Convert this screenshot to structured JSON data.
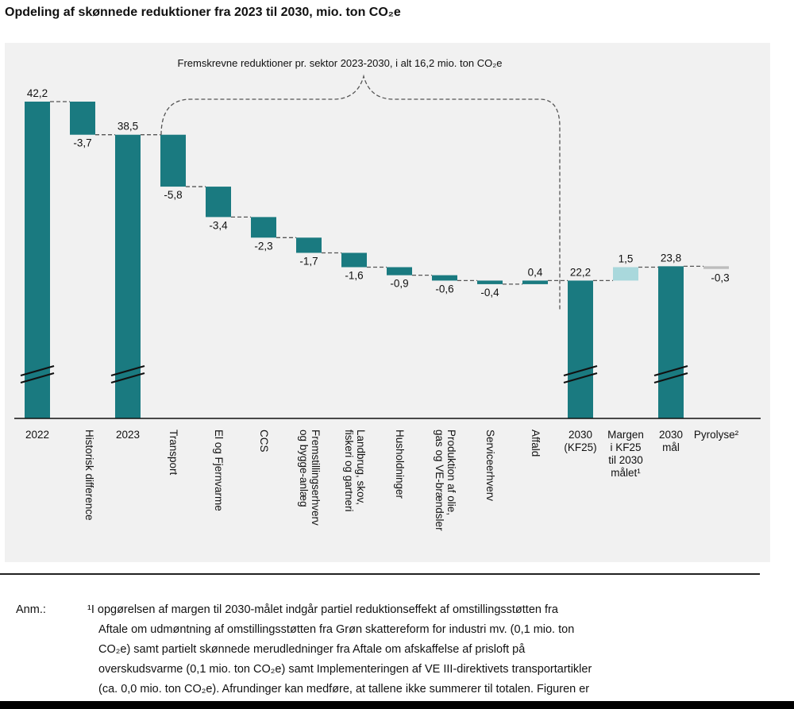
{
  "title": "Opdeling af skønnede reduktioner fra 2023 til 2030, mio. ton CO₂e",
  "colors": {
    "bar": "#1a7a80",
    "margin_bar": "#a9d8dc",
    "pyrolysis_bar": "#bdbdbd",
    "panel": "#f1f1f1"
  },
  "chart_data": {
    "type": "waterfall",
    "title": "Opdeling af skønnede reduktioner fra 2023 til 2030, mio. ton CO₂e",
    "unit": "mio. ton CO₂e",
    "bracket_label": "Fremskrevne reduktioner pr. sektor 2023-2030, i alt 16,2 mio. ton CO₂e",
    "axis_break_on": [
      "2022",
      "2023",
      "2030 (KF25)",
      "2030 mål"
    ],
    "categories": [
      {
        "label": "2022",
        "kind": "total",
        "value": 42.2,
        "value_label": "42,2",
        "rotated": false
      },
      {
        "label": "Historisk difference",
        "kind": "delta",
        "value": -3.7,
        "value_label": "-3,7",
        "rotated": true
      },
      {
        "label": "2023",
        "kind": "total",
        "value": 38.5,
        "value_label": "38,5",
        "rotated": false
      },
      {
        "label": "Transport",
        "kind": "delta",
        "value": -5.8,
        "value_label": "-5,8",
        "rotated": true
      },
      {
        "label": "El og Fjernvarme",
        "kind": "delta",
        "value": -3.4,
        "value_label": "-3,4",
        "rotated": true
      },
      {
        "label": "CCS",
        "kind": "delta",
        "value": -2.3,
        "value_label": "-2,3",
        "rotated": true
      },
      {
        "label": "Fremstillingserhverv og bygge-anlæg",
        "kind": "delta",
        "value": -1.7,
        "value_label": "-1,7",
        "rotated": true
      },
      {
        "label": "Landbrug, skov, fiskeri og gartneri",
        "kind": "delta",
        "value": -1.6,
        "value_label": "-1,6",
        "rotated": true
      },
      {
        "label": "Husholdninger",
        "kind": "delta",
        "value": -0.9,
        "value_label": "-0,9",
        "rotated": true
      },
      {
        "label": "Produktion af olie, gas og VE-brændsler",
        "kind": "delta",
        "value": -0.6,
        "value_label": "-0,6",
        "rotated": true
      },
      {
        "label": "Serviceerhverv",
        "kind": "delta",
        "value": -0.4,
        "value_label": "-0,4",
        "rotated": true
      },
      {
        "label": "Affald",
        "kind": "delta",
        "value": 0.4,
        "value_label": "0,4",
        "rotated": true
      },
      {
        "label": "2030 (KF25)",
        "kind": "total",
        "value": 22.2,
        "value_label": "22,2",
        "rotated": false
      },
      {
        "label": "Margen i KF25 til 2030 målet¹",
        "kind": "delta_up",
        "value": 1.5,
        "value_label": "1,5",
        "rotated": false
      },
      {
        "label": "2030 mål",
        "kind": "total",
        "value": 23.8,
        "value_label": "23,8",
        "rotated": false
      },
      {
        "label": "Pyrolyse²",
        "kind": "delta",
        "value": -0.3,
        "value_label": "-0,3",
        "rotated": false
      }
    ]
  },
  "note": {
    "label": "Anm.:",
    "lines": [
      "¹I opgørelsen af margen til 2030-målet indgår partiel reduktionseffekt af omstillingsstøtten fra",
      "Aftale om udmøntning af omstillingsstøtten fra Grøn skattereform for industri mv. (0,1 mio. ton",
      "CO₂e) samt partielt skønnede merudledninger fra Aftale om afskaffelse af prisloft på",
      "overskudsvarme (0,1 mio. ton CO₂e) samt Implementeringen af VE III-direktivets transportartikler",
      "(ca. 0,0 mio. ton CO₂e). Afrundinger kan medføre, at tallene ikke summerer til totalen. Figuren er"
    ]
  }
}
